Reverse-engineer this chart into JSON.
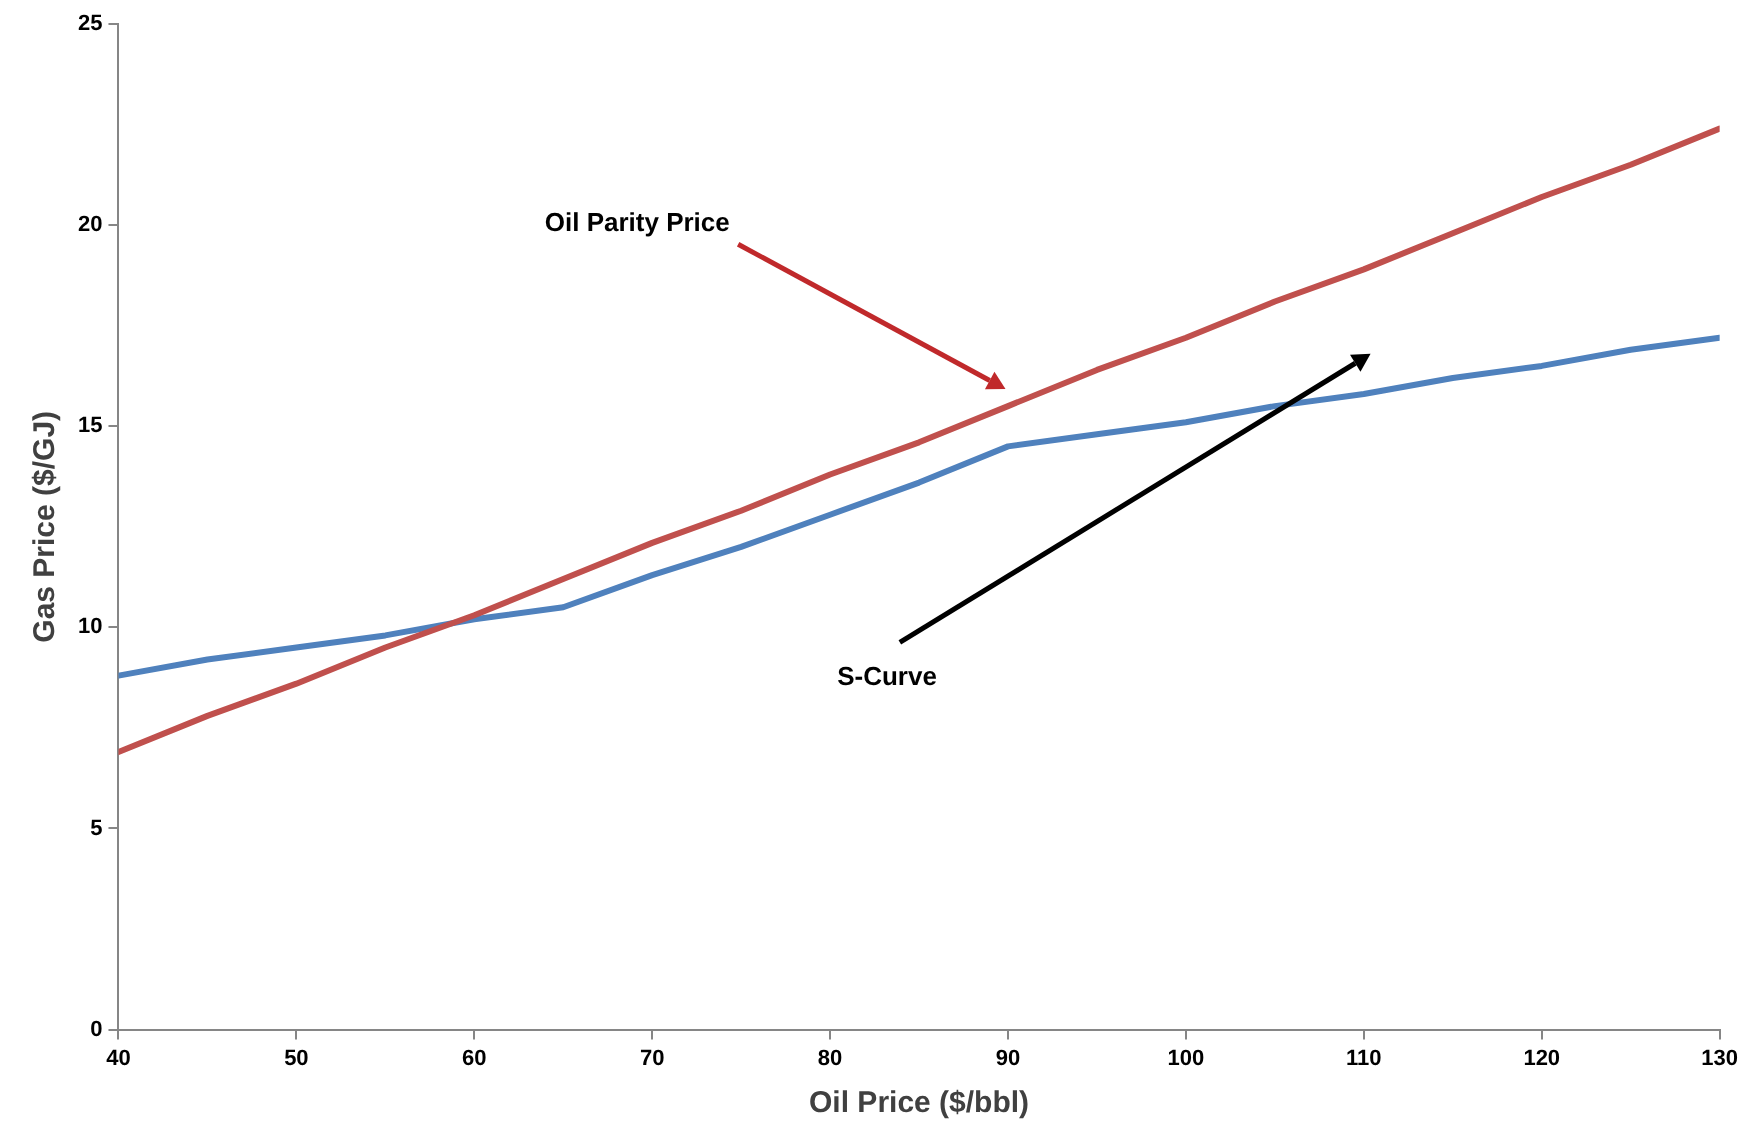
{
  "chart_data": {
    "type": "line",
    "xlabel": "Oil Price ($/bbl)",
    "ylabel": "Gas Price ($/GJ)",
    "x": [
      40,
      45,
      50,
      55,
      60,
      65,
      70,
      75,
      80,
      85,
      90,
      95,
      100,
      105,
      110,
      115,
      120,
      125,
      130
    ],
    "series": [
      {
        "color": "#c0504d",
        "values": [
          6.9,
          7.8,
          8.6,
          9.5,
          10.3,
          11.2,
          12.1,
          12.9,
          13.8,
          14.6,
          15.5,
          16.4,
          17.2,
          18.1,
          18.9,
          19.8,
          20.7,
          21.5,
          22.4
        ]
      },
      {
        "color": "#4f81bd",
        "values": [
          8.8,
          9.2,
          9.5,
          9.8,
          10.2,
          10.5,
          11.3,
          12.0,
          12.8,
          13.6,
          14.5,
          14.8,
          15.1,
          15.5,
          15.8,
          16.2,
          16.5,
          16.9,
          17.2
        ]
      }
    ],
    "xlim": [
      40,
      130
    ],
    "xticks": [
      40,
      50,
      60,
      70,
      80,
      90,
      100,
      110,
      120,
      130
    ],
    "ylim": [
      0,
      25
    ],
    "yticks": [
      0,
      5,
      10,
      15,
      20,
      25
    ],
    "grid": false,
    "legend": false,
    "marker": "none",
    "line_style": "solid",
    "annotations": [
      "Oil Parity Price",
      "S-Curve"
    ]
  }
}
